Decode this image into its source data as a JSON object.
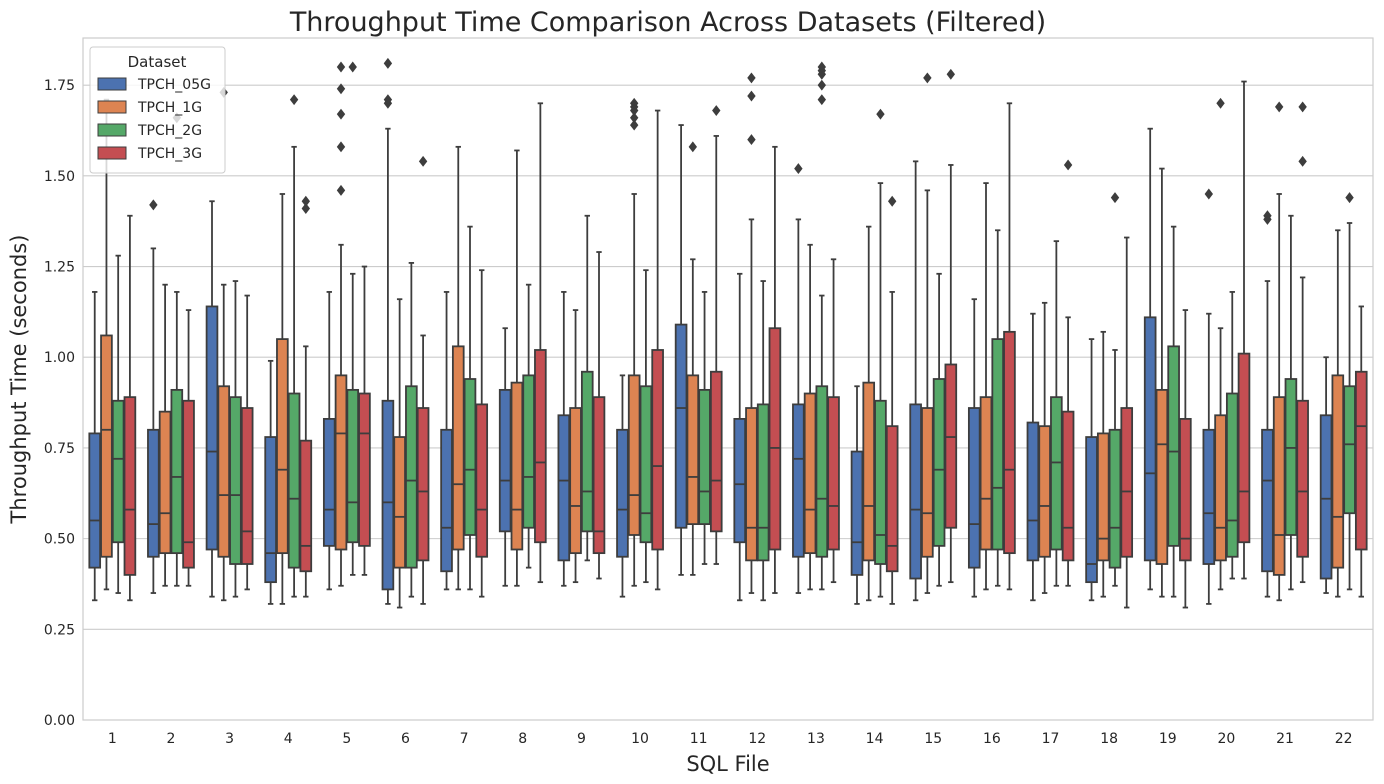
{
  "chart_data": {
    "type": "box",
    "title": "Throughput Time Comparison Across Datasets (Filtered)",
    "xlabel": "SQL File",
    "ylabel": "Throughput Time (seconds)",
    "categories": [
      "1",
      "2",
      "3",
      "4",
      "5",
      "6",
      "7",
      "8",
      "9",
      "10",
      "11",
      "12",
      "13",
      "14",
      "15",
      "16",
      "17",
      "18",
      "19",
      "20",
      "21",
      "22"
    ],
    "ylim": [
      0,
      1.88
    ],
    "yticks": [
      "0.00",
      "0.25",
      "0.50",
      "0.75",
      "1.00",
      "1.25",
      "1.50",
      "1.75"
    ],
    "grid": "horizontal",
    "legend": {
      "title": "Dataset",
      "placement": "top-left"
    },
    "series": [
      {
        "name": "TPCH_05G",
        "color": "#4c72b0",
        "boxes": [
          {
            "whislo": 0.33,
            "q1": 0.42,
            "med": 0.55,
            "q3": 0.79,
            "whishi": 1.18,
            "fliers": []
          },
          {
            "whislo": 0.35,
            "q1": 0.45,
            "med": 0.54,
            "q3": 0.8,
            "whishi": 1.3,
            "fliers": [
              1.42
            ]
          },
          {
            "whislo": 0.34,
            "q1": 0.47,
            "med": 0.74,
            "q3": 1.14,
            "whishi": 1.43,
            "fliers": []
          },
          {
            "whislo": 0.32,
            "q1": 0.38,
            "med": 0.46,
            "q3": 0.78,
            "whishi": 0.99,
            "fliers": []
          },
          {
            "whislo": 0.36,
            "q1": 0.48,
            "med": 0.58,
            "q3": 0.83,
            "whishi": 1.18,
            "fliers": []
          },
          {
            "whislo": 0.32,
            "q1": 0.36,
            "med": 0.6,
            "q3": 0.88,
            "whishi": 1.63,
            "fliers": [
              1.7,
              1.71,
              1.81
            ]
          },
          {
            "whislo": 0.36,
            "q1": 0.41,
            "med": 0.53,
            "q3": 0.8,
            "whishi": 1.18,
            "fliers": []
          },
          {
            "whislo": 0.37,
            "q1": 0.52,
            "med": 0.66,
            "q3": 0.91,
            "whishi": 1.08,
            "fliers": []
          },
          {
            "whislo": 0.37,
            "q1": 0.44,
            "med": 0.66,
            "q3": 0.84,
            "whishi": 1.18,
            "fliers": []
          },
          {
            "whislo": 0.34,
            "q1": 0.45,
            "med": 0.58,
            "q3": 0.8,
            "whishi": 0.95,
            "fliers": []
          },
          {
            "whislo": 0.4,
            "q1": 0.53,
            "med": 0.86,
            "q3": 1.09,
            "whishi": 1.64,
            "fliers": []
          },
          {
            "whislo": 0.33,
            "q1": 0.49,
            "med": 0.65,
            "q3": 0.83,
            "whishi": 1.23,
            "fliers": []
          },
          {
            "whislo": 0.35,
            "q1": 0.45,
            "med": 0.72,
            "q3": 0.87,
            "whishi": 1.38,
            "fliers": [
              1.52
            ]
          },
          {
            "whislo": 0.32,
            "q1": 0.4,
            "med": 0.49,
            "q3": 0.74,
            "whishi": 0.92,
            "fliers": []
          },
          {
            "whislo": 0.33,
            "q1": 0.39,
            "med": 0.58,
            "q3": 0.87,
            "whishi": 1.54,
            "fliers": []
          },
          {
            "whislo": 0.34,
            "q1": 0.42,
            "med": 0.54,
            "q3": 0.86,
            "whishi": 1.16,
            "fliers": []
          },
          {
            "whislo": 0.33,
            "q1": 0.44,
            "med": 0.55,
            "q3": 0.82,
            "whishi": 1.12,
            "fliers": []
          },
          {
            "whislo": 0.33,
            "q1": 0.38,
            "med": 0.43,
            "q3": 0.78,
            "whishi": 1.05,
            "fliers": []
          },
          {
            "whislo": 0.36,
            "q1": 0.44,
            "med": 0.68,
            "q3": 1.11,
            "whishi": 1.63,
            "fliers": []
          },
          {
            "whislo": 0.32,
            "q1": 0.43,
            "med": 0.57,
            "q3": 0.8,
            "whishi": 1.12,
            "fliers": [
              1.45
            ]
          },
          {
            "whislo": 0.34,
            "q1": 0.41,
            "med": 0.66,
            "q3": 0.8,
            "whishi": 1.21,
            "fliers": [
              1.38,
              1.39
            ]
          },
          {
            "whislo": 0.35,
            "q1": 0.39,
            "med": 0.61,
            "q3": 0.84,
            "whishi": 1.0,
            "fliers": []
          }
        ]
      },
      {
        "name": "TPCH_1G",
        "color": "#dd8452",
        "boxes": [
          {
            "whislo": 0.36,
            "q1": 0.45,
            "med": 0.8,
            "q3": 1.06,
            "whishi": 1.71,
            "fliers": []
          },
          {
            "whislo": 0.37,
            "q1": 0.46,
            "med": 0.57,
            "q3": 0.85,
            "whishi": 1.2,
            "fliers": []
          },
          {
            "whislo": 0.33,
            "q1": 0.45,
            "med": 0.62,
            "q3": 0.92,
            "whishi": 1.2,
            "fliers": [
              1.73
            ]
          },
          {
            "whislo": 0.32,
            "q1": 0.46,
            "med": 0.69,
            "q3": 1.05,
            "whishi": 1.45,
            "fliers": []
          },
          {
            "whislo": 0.37,
            "q1": 0.47,
            "med": 0.79,
            "q3": 0.95,
            "whishi": 1.31,
            "fliers": [
              1.46,
              1.58,
              1.67,
              1.74,
              1.8
            ]
          },
          {
            "whislo": 0.31,
            "q1": 0.42,
            "med": 0.56,
            "q3": 0.78,
            "whishi": 1.16,
            "fliers": []
          },
          {
            "whislo": 0.36,
            "q1": 0.47,
            "med": 0.65,
            "q3": 1.03,
            "whishi": 1.58,
            "fliers": []
          },
          {
            "whislo": 0.37,
            "q1": 0.47,
            "med": 0.58,
            "q3": 0.93,
            "whishi": 1.57,
            "fliers": []
          },
          {
            "whislo": 0.38,
            "q1": 0.46,
            "med": 0.59,
            "q3": 0.86,
            "whishi": 1.13,
            "fliers": []
          },
          {
            "whislo": 0.37,
            "q1": 0.51,
            "med": 0.62,
            "q3": 0.95,
            "whishi": 1.45,
            "fliers": [
              1.64,
              1.66,
              1.68,
              1.69,
              1.7
            ]
          },
          {
            "whislo": 0.4,
            "q1": 0.54,
            "med": 0.67,
            "q3": 0.95,
            "whishi": 1.27,
            "fliers": [
              1.58
            ]
          },
          {
            "whislo": 0.35,
            "q1": 0.44,
            "med": 0.53,
            "q3": 0.86,
            "whishi": 1.38,
            "fliers": [
              1.6,
              1.72,
              1.77
            ]
          },
          {
            "whislo": 0.36,
            "q1": 0.46,
            "med": 0.58,
            "q3": 0.9,
            "whishi": 1.31,
            "fliers": []
          },
          {
            "whislo": 0.33,
            "q1": 0.44,
            "med": 0.59,
            "q3": 0.93,
            "whishi": 1.36,
            "fliers": []
          },
          {
            "whislo": 0.35,
            "q1": 0.45,
            "med": 0.57,
            "q3": 0.86,
            "whishi": 1.46,
            "fliers": [
              1.77
            ]
          },
          {
            "whislo": 0.36,
            "q1": 0.47,
            "med": 0.61,
            "q3": 0.89,
            "whishi": 1.48,
            "fliers": []
          },
          {
            "whislo": 0.35,
            "q1": 0.45,
            "med": 0.59,
            "q3": 0.81,
            "whishi": 1.15,
            "fliers": []
          },
          {
            "whislo": 0.34,
            "q1": 0.44,
            "med": 0.5,
            "q3": 0.79,
            "whishi": 1.07,
            "fliers": []
          },
          {
            "whislo": 0.34,
            "q1": 0.43,
            "med": 0.76,
            "q3": 0.91,
            "whishi": 1.52,
            "fliers": []
          },
          {
            "whislo": 0.36,
            "q1": 0.44,
            "med": 0.53,
            "q3": 0.84,
            "whishi": 1.08,
            "fliers": [
              1.7
            ]
          },
          {
            "whislo": 0.33,
            "q1": 0.4,
            "med": 0.51,
            "q3": 0.89,
            "whishi": 1.45,
            "fliers": [
              1.69
            ]
          },
          {
            "whislo": 0.34,
            "q1": 0.42,
            "med": 0.56,
            "q3": 0.95,
            "whishi": 1.35,
            "fliers": []
          }
        ]
      },
      {
        "name": "TPCH_2G",
        "color": "#55a868",
        "boxes": [
          {
            "whislo": 0.35,
            "q1": 0.49,
            "med": 0.72,
            "q3": 0.88,
            "whishi": 1.28,
            "fliers": []
          },
          {
            "whislo": 0.37,
            "q1": 0.46,
            "med": 0.67,
            "q3": 0.91,
            "whishi": 1.18,
            "fliers": [
              1.66
            ]
          },
          {
            "whislo": 0.34,
            "q1": 0.43,
            "med": 0.62,
            "q3": 0.89,
            "whishi": 1.21,
            "fliers": []
          },
          {
            "whislo": 0.34,
            "q1": 0.42,
            "med": 0.61,
            "q3": 0.9,
            "whishi": 1.58,
            "fliers": [
              1.71
            ]
          },
          {
            "whislo": 0.4,
            "q1": 0.49,
            "med": 0.6,
            "q3": 0.91,
            "whishi": 1.23,
            "fliers": [
              1.8
            ]
          },
          {
            "whislo": 0.34,
            "q1": 0.42,
            "med": 0.66,
            "q3": 0.92,
            "whishi": 1.26,
            "fliers": []
          },
          {
            "whislo": 0.36,
            "q1": 0.51,
            "med": 0.69,
            "q3": 0.94,
            "whishi": 1.36,
            "fliers": []
          },
          {
            "whislo": 0.42,
            "q1": 0.53,
            "med": 0.67,
            "q3": 0.95,
            "whishi": 1.2,
            "fliers": []
          },
          {
            "whislo": 0.44,
            "q1": 0.52,
            "med": 0.63,
            "q3": 0.96,
            "whishi": 1.39,
            "fliers": []
          },
          {
            "whislo": 0.38,
            "q1": 0.49,
            "med": 0.57,
            "q3": 0.92,
            "whishi": 1.24,
            "fliers": []
          },
          {
            "whislo": 0.43,
            "q1": 0.54,
            "med": 0.63,
            "q3": 0.91,
            "whishi": 1.18,
            "fliers": []
          },
          {
            "whislo": 0.33,
            "q1": 0.44,
            "med": 0.53,
            "q3": 0.87,
            "whishi": 1.21,
            "fliers": []
          },
          {
            "whislo": 0.36,
            "q1": 0.45,
            "med": 0.61,
            "q3": 0.92,
            "whishi": 1.17,
            "fliers": [
              1.71,
              1.75,
              1.78,
              1.79,
              1.8
            ]
          },
          {
            "whislo": 0.34,
            "q1": 0.43,
            "med": 0.51,
            "q3": 0.88,
            "whishi": 1.48,
            "fliers": [
              1.67
            ]
          },
          {
            "whislo": 0.37,
            "q1": 0.48,
            "med": 0.69,
            "q3": 0.94,
            "whishi": 1.23,
            "fliers": []
          },
          {
            "whislo": 0.37,
            "q1": 0.47,
            "med": 0.64,
            "q3": 1.05,
            "whishi": 1.35,
            "fliers": []
          },
          {
            "whislo": 0.37,
            "q1": 0.47,
            "med": 0.71,
            "q3": 0.89,
            "whishi": 1.32,
            "fliers": []
          },
          {
            "whislo": 0.37,
            "q1": 0.42,
            "med": 0.53,
            "q3": 0.8,
            "whishi": 1.02,
            "fliers": [
              1.44
            ]
          },
          {
            "whislo": 0.34,
            "q1": 0.48,
            "med": 0.74,
            "q3": 1.03,
            "whishi": 1.36,
            "fliers": []
          },
          {
            "whislo": 0.39,
            "q1": 0.45,
            "med": 0.55,
            "q3": 0.9,
            "whishi": 1.18,
            "fliers": []
          },
          {
            "whislo": 0.36,
            "q1": 0.51,
            "med": 0.75,
            "q3": 0.94,
            "whishi": 1.39,
            "fliers": []
          },
          {
            "whislo": 0.36,
            "q1": 0.57,
            "med": 0.76,
            "q3": 0.92,
            "whishi": 1.37,
            "fliers": [
              1.44
            ]
          }
        ]
      },
      {
        "name": "TPCH_3G",
        "color": "#c44e52",
        "boxes": [
          {
            "whislo": 0.33,
            "q1": 0.4,
            "med": 0.58,
            "q3": 0.89,
            "whishi": 1.39,
            "fliers": []
          },
          {
            "whislo": 0.37,
            "q1": 0.42,
            "med": 0.49,
            "q3": 0.88,
            "whishi": 1.13,
            "fliers": []
          },
          {
            "whislo": 0.36,
            "q1": 0.43,
            "med": 0.52,
            "q3": 0.86,
            "whishi": 1.17,
            "fliers": []
          },
          {
            "whislo": 0.34,
            "q1": 0.41,
            "med": 0.48,
            "q3": 0.77,
            "whishi": 1.03,
            "fliers": [
              1.41,
              1.43
            ]
          },
          {
            "whislo": 0.4,
            "q1": 0.48,
            "med": 0.79,
            "q3": 0.9,
            "whishi": 1.25,
            "fliers": []
          },
          {
            "whislo": 0.32,
            "q1": 0.44,
            "med": 0.63,
            "q3": 0.86,
            "whishi": 1.06,
            "fliers": [
              1.54
            ]
          },
          {
            "whislo": 0.34,
            "q1": 0.45,
            "med": 0.58,
            "q3": 0.87,
            "whishi": 1.24,
            "fliers": []
          },
          {
            "whislo": 0.38,
            "q1": 0.49,
            "med": 0.71,
            "q3": 1.02,
            "whishi": 1.7,
            "fliers": []
          },
          {
            "whislo": 0.39,
            "q1": 0.46,
            "med": 0.52,
            "q3": 0.89,
            "whishi": 1.29,
            "fliers": []
          },
          {
            "whislo": 0.36,
            "q1": 0.47,
            "med": 0.7,
            "q3": 1.02,
            "whishi": 1.68,
            "fliers": []
          },
          {
            "whislo": 0.43,
            "q1": 0.52,
            "med": 0.66,
            "q3": 0.96,
            "whishi": 1.61,
            "fliers": [
              1.68
            ]
          },
          {
            "whislo": 0.35,
            "q1": 0.47,
            "med": 0.75,
            "q3": 1.08,
            "whishi": 1.58,
            "fliers": []
          },
          {
            "whislo": 0.38,
            "q1": 0.47,
            "med": 0.59,
            "q3": 0.89,
            "whishi": 1.27,
            "fliers": []
          },
          {
            "whislo": 0.32,
            "q1": 0.41,
            "med": 0.48,
            "q3": 0.81,
            "whishi": 1.18,
            "fliers": [
              1.43
            ]
          },
          {
            "whislo": 0.38,
            "q1": 0.53,
            "med": 0.78,
            "q3": 0.98,
            "whishi": 1.53,
            "fliers": [
              1.78
            ]
          },
          {
            "whislo": 0.36,
            "q1": 0.46,
            "med": 0.69,
            "q3": 1.07,
            "whishi": 1.7,
            "fliers": []
          },
          {
            "whislo": 0.37,
            "q1": 0.44,
            "med": 0.53,
            "q3": 0.85,
            "whishi": 1.11,
            "fliers": [
              1.53
            ]
          },
          {
            "whislo": 0.31,
            "q1": 0.45,
            "med": 0.63,
            "q3": 0.86,
            "whishi": 1.33,
            "fliers": []
          },
          {
            "whislo": 0.31,
            "q1": 0.44,
            "med": 0.5,
            "q3": 0.83,
            "whishi": 1.13,
            "fliers": []
          },
          {
            "whislo": 0.39,
            "q1": 0.49,
            "med": 0.63,
            "q3": 1.01,
            "whishi": 1.76,
            "fliers": []
          },
          {
            "whislo": 0.38,
            "q1": 0.45,
            "med": 0.63,
            "q3": 0.88,
            "whishi": 1.22,
            "fliers": [
              1.54,
              1.69
            ]
          },
          {
            "whislo": 0.34,
            "q1": 0.47,
            "med": 0.81,
            "q3": 0.96,
            "whishi": 1.14,
            "fliers": []
          }
        ]
      }
    ]
  }
}
